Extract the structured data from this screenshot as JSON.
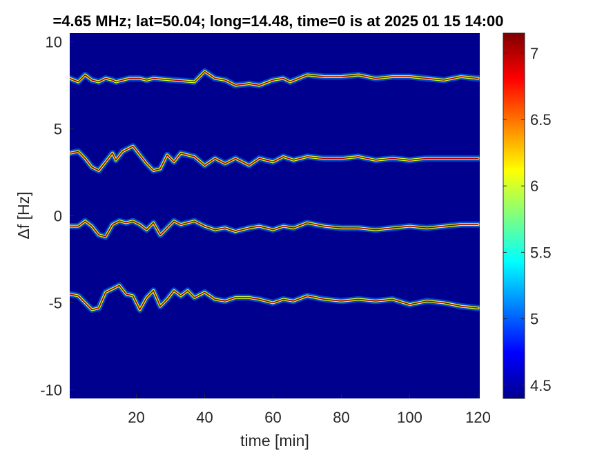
{
  "chart_data": {
    "type": "heatmap",
    "title": "=4.65 MHz;  lat=50.04; long=14.48, time=0 is at 2025 01 15 14:00",
    "xlabel": "time [min]",
    "ylabel": "Δf [Hz]",
    "xlim": [
      0.5,
      120.5
    ],
    "ylim": [
      -10.5,
      10.5
    ],
    "xticks": [
      20,
      40,
      60,
      80,
      100,
      120
    ],
    "xtick_labels": [
      "20",
      "40",
      "60",
      "80",
      "100",
      "120"
    ],
    "yticks": [
      10,
      5,
      0,
      -5,
      -10
    ],
    "ytick_labels": [
      "10",
      "5",
      "0",
      "-5",
      "-10"
    ],
    "colorbar": {
      "colormap": "jet",
      "clim": [
        4.4,
        7.15
      ],
      "ticks": [
        7,
        6.5,
        6,
        5.5,
        5,
        4.5
      ],
      "tick_labels": [
        "7",
        "6.5",
        "6",
        "5.5",
        "5",
        "4.5"
      ]
    },
    "background_value": 4.4,
    "traces": [
      {
        "name": "",
        "peak_value": 7.0,
        "points": [
          [
            0.5,
            7.9
          ],
          [
            3,
            7.7
          ],
          [
            5,
            8.1
          ],
          [
            7,
            7.8
          ],
          [
            9,
            7.7
          ],
          [
            11,
            7.9
          ],
          [
            13,
            7.8
          ],
          [
            14,
            7.7
          ],
          [
            18,
            7.9
          ],
          [
            21,
            7.9
          ],
          [
            23,
            7.8
          ],
          [
            25,
            7.9
          ],
          [
            37,
            7.7
          ],
          [
            40,
            8.3
          ],
          [
            43,
            7.9
          ],
          [
            46,
            7.8
          ],
          [
            49,
            7.5
          ],
          [
            53,
            7.6
          ],
          [
            56,
            7.5
          ],
          [
            60,
            7.8
          ],
          [
            63,
            7.9
          ],
          [
            65,
            7.7
          ],
          [
            70,
            8.1
          ],
          [
            75,
            8.0
          ],
          [
            80,
            8.0
          ],
          [
            85,
            8.1
          ],
          [
            90,
            7.9
          ],
          [
            95,
            8.0
          ],
          [
            100,
            8.0
          ],
          [
            105,
            7.9
          ],
          [
            110,
            7.8
          ],
          [
            115,
            8.0
          ],
          [
            120,
            7.9
          ]
        ]
      },
      {
        "name": "",
        "peak_value": 7.0,
        "points": [
          [
            0.5,
            3.6
          ],
          [
            3,
            3.7
          ],
          [
            5,
            3.3
          ],
          [
            7,
            2.8
          ],
          [
            9,
            2.6
          ],
          [
            11,
            3.1
          ],
          [
            13,
            3.6
          ],
          [
            14,
            3.2
          ],
          [
            16,
            3.7
          ],
          [
            19,
            4.0
          ],
          [
            21,
            3.5
          ],
          [
            23,
            3.0
          ],
          [
            25,
            2.6
          ],
          [
            27,
            2.7
          ],
          [
            29,
            3.5
          ],
          [
            31,
            3.1
          ],
          [
            33,
            3.6
          ],
          [
            37,
            3.4
          ],
          [
            40,
            2.9
          ],
          [
            43,
            3.3
          ],
          [
            46,
            3.0
          ],
          [
            49,
            3.3
          ],
          [
            53,
            2.9
          ],
          [
            56,
            3.3
          ],
          [
            60,
            3.1
          ],
          [
            63,
            3.4
          ],
          [
            66,
            3.2
          ],
          [
            70,
            3.4
          ],
          [
            75,
            3.3
          ],
          [
            80,
            3.3
          ],
          [
            85,
            3.4
          ],
          [
            90,
            3.2
          ],
          [
            95,
            3.3
          ],
          [
            100,
            3.2
          ],
          [
            105,
            3.3
          ],
          [
            110,
            3.3
          ],
          [
            115,
            3.3
          ],
          [
            120,
            3.3
          ]
        ]
      },
      {
        "name": "",
        "peak_value": 7.05,
        "points": [
          [
            0.5,
            -0.6
          ],
          [
            3,
            -0.6
          ],
          [
            5,
            -0.3
          ],
          [
            7,
            -0.6
          ],
          [
            9,
            -1.1
          ],
          [
            11,
            -1.2
          ],
          [
            13,
            -0.5
          ],
          [
            15,
            -0.3
          ],
          [
            17,
            -0.4
          ],
          [
            19,
            -0.3
          ],
          [
            21,
            -0.5
          ],
          [
            23,
            -0.8
          ],
          [
            25,
            -0.4
          ],
          [
            27,
            -1.1
          ],
          [
            29,
            -0.7
          ],
          [
            31,
            -0.3
          ],
          [
            33,
            -0.5
          ],
          [
            37,
            -0.3
          ],
          [
            40,
            -0.6
          ],
          [
            43,
            -0.8
          ],
          [
            46,
            -0.7
          ],
          [
            49,
            -0.9
          ],
          [
            53,
            -0.7
          ],
          [
            56,
            -0.6
          ],
          [
            60,
            -0.8
          ],
          [
            63,
            -0.6
          ],
          [
            66,
            -0.7
          ],
          [
            70,
            -0.4
          ],
          [
            75,
            -0.6
          ],
          [
            80,
            -0.7
          ],
          [
            85,
            -0.7
          ],
          [
            90,
            -0.8
          ],
          [
            95,
            -0.7
          ],
          [
            100,
            -0.6
          ],
          [
            105,
            -0.7
          ],
          [
            110,
            -0.6
          ],
          [
            115,
            -0.5
          ],
          [
            120,
            -0.5
          ]
        ]
      },
      {
        "name": "",
        "peak_value": 7.05,
        "points": [
          [
            0.5,
            -4.5
          ],
          [
            3,
            -4.6
          ],
          [
            5,
            -5.0
          ],
          [
            7,
            -5.4
          ],
          [
            9,
            -5.3
          ],
          [
            11,
            -4.4
          ],
          [
            13,
            -4.2
          ],
          [
            15,
            -4.0
          ],
          [
            17,
            -4.5
          ],
          [
            19,
            -4.6
          ],
          [
            21,
            -5.4
          ],
          [
            23,
            -4.7
          ],
          [
            25,
            -4.3
          ],
          [
            27,
            -5.2
          ],
          [
            29,
            -4.8
          ],
          [
            31,
            -4.3
          ],
          [
            33,
            -4.6
          ],
          [
            35,
            -4.3
          ],
          [
            37,
            -4.7
          ],
          [
            40,
            -4.4
          ],
          [
            43,
            -4.8
          ],
          [
            46,
            -4.9
          ],
          [
            49,
            -4.7
          ],
          [
            53,
            -4.7
          ],
          [
            56,
            -4.8
          ],
          [
            60,
            -5.0
          ],
          [
            63,
            -4.8
          ],
          [
            66,
            -4.9
          ],
          [
            70,
            -4.6
          ],
          [
            75,
            -4.8
          ],
          [
            80,
            -4.9
          ],
          [
            85,
            -4.8
          ],
          [
            90,
            -4.9
          ],
          [
            95,
            -4.8
          ],
          [
            100,
            -5.1
          ],
          [
            105,
            -4.9
          ],
          [
            110,
            -5.0
          ],
          [
            115,
            -5.2
          ],
          [
            120,
            -5.3
          ]
        ]
      }
    ]
  }
}
